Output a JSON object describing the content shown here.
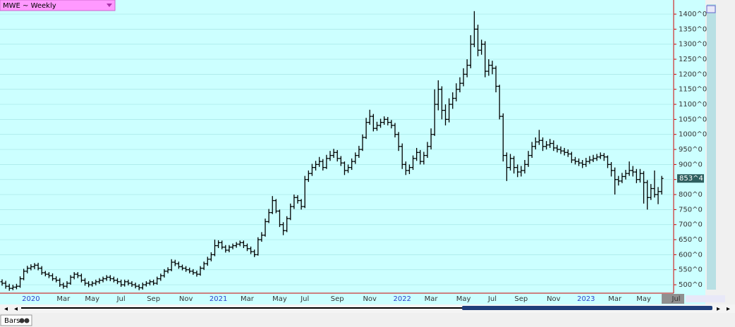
{
  "ui": {
    "symbol": "MWE ~ Weekly",
    "tab": "Bars"
  },
  "chart_data": {
    "type": "ohlc",
    "grid": true,
    "color": "#000000",
    "ylim": [
      472,
      1447
    ],
    "yticks": [
      {
        "value": 500,
        "label": "500^0"
      },
      {
        "value": 550,
        "label": "550^0"
      },
      {
        "value": 600,
        "label": "600^0"
      },
      {
        "value": 650,
        "label": "650^0"
      },
      {
        "value": 700,
        "label": "700^0"
      },
      {
        "value": 750,
        "label": "750^0"
      },
      {
        "value": 800,
        "label": "800^0"
      },
      {
        "value": 850,
        "label": "850^0"
      },
      {
        "value": 900,
        "label": "900^0"
      },
      {
        "value": 950,
        "label": "950^0"
      },
      {
        "value": 1000,
        "label": "1000^0"
      },
      {
        "value": 1050,
        "label": "1050^0"
      },
      {
        "value": 1100,
        "label": "1100^0"
      },
      {
        "value": 1150,
        "label": "1150^0"
      },
      {
        "value": 1200,
        "label": "1200^0"
      },
      {
        "value": 1250,
        "label": "1250^0"
      },
      {
        "value": 1300,
        "label": "1300^0"
      },
      {
        "value": 1350,
        "label": "1350^0"
      },
      {
        "value": 1400,
        "label": "1400^0"
      }
    ],
    "last": {
      "value": 853.5,
      "label": "853^4"
    },
    "categories": [
      null,
      null,
      null,
      null,
      null,
      null,
      null,
      null,
      "2020",
      null,
      null,
      null,
      null,
      null,
      null,
      null,
      null,
      "Mar",
      null,
      null,
      null,
      null,
      null,
      null,
      null,
      "May",
      null,
      null,
      null,
      null,
      null,
      null,
      null,
      "Jul",
      null,
      null,
      null,
      null,
      null,
      null,
      null,
      null,
      "Sep",
      null,
      null,
      null,
      null,
      null,
      null,
      null,
      null,
      "Nov",
      null,
      null,
      null,
      null,
      null,
      null,
      null,
      null,
      "2021",
      null,
      null,
      null,
      null,
      null,
      null,
      null,
      "Mar",
      null,
      null,
      null,
      null,
      null,
      null,
      null,
      null,
      "May",
      null,
      null,
      null,
      null,
      null,
      null,
      "Jul",
      null,
      null,
      null,
      null,
      null,
      null,
      null,
      null,
      "Sep",
      null,
      null,
      null,
      null,
      null,
      null,
      null,
      null,
      "Nov",
      null,
      null,
      null,
      null,
      null,
      null,
      null,
      null,
      "2022",
      null,
      null,
      null,
      null,
      null,
      null,
      null,
      "Mar",
      null,
      null,
      null,
      null,
      null,
      null,
      null,
      null,
      "May",
      null,
      null,
      null,
      null,
      null,
      null,
      null,
      "Jul",
      null,
      null,
      null,
      null,
      null,
      null,
      null,
      "Sep",
      null,
      null,
      null,
      null,
      null,
      null,
      null,
      null,
      "Nov",
      null,
      null,
      null,
      null,
      null,
      null,
      null,
      null,
      "2023",
      null,
      null,
      null,
      null,
      null,
      null,
      null,
      "Mar",
      null,
      null,
      null,
      null,
      null,
      null,
      null,
      "May",
      null,
      null,
      null,
      null,
      null,
      null,
      null,
      null,
      "Jul"
    ],
    "open": [
      510,
      505,
      495,
      488,
      492,
      495,
      520,
      545,
      555,
      560,
      565,
      555,
      540,
      535,
      530,
      520,
      515,
      500,
      495,
      505,
      525,
      535,
      530,
      515,
      505,
      500,
      505,
      510,
      515,
      520,
      525,
      520,
      515,
      510,
      500,
      510,
      505,
      500,
      495,
      490,
      500,
      505,
      510,
      505,
      520,
      530,
      545,
      550,
      575,
      570,
      560,
      555,
      550,
      545,
      540,
      535,
      555,
      570,
      585,
      600,
      630,
      640,
      625,
      615,
      625,
      630,
      635,
      640,
      630,
      620,
      610,
      600,
      650,
      665,
      710,
      740,
      780,
      745,
      700,
      680,
      720,
      760,
      790,
      780,
      760,
      850,
      870,
      890,
      900,
      910,
      890,
      920,
      930,
      940,
      920,
      905,
      880,
      890,
      910,
      930,
      950,
      990,
      1040,
      1060,
      1020,
      1030,
      1040,
      1050,
      1040,
      1030,
      1000,
      960,
      900,
      880,
      890,
      920,
      940,
      910,
      930,
      960,
      1000,
      1100,
      1150,
      1080,
      1050,
      1100,
      1120,
      1150,
      1170,
      1200,
      1230,
      1300,
      1350,
      1280,
      1300,
      1210,
      1230,
      1220,
      1160,
      1060,
      930,
      890,
      920,
      890,
      875,
      880,
      900,
      930,
      960,
      975,
      980,
      960,
      965,
      970,
      955,
      950,
      945,
      940,
      935,
      915,
      910,
      905,
      900,
      910,
      915,
      920,
      925,
      930,
      925,
      900,
      880,
      850,
      845,
      860,
      870,
      880,
      875,
      850,
      870,
      840,
      790,
      820,
      800,
      810,
      null,
      null,
      null,
      null
    ],
    "high": [
      518,
      513,
      503,
      500,
      503,
      528,
      553,
      563,
      568,
      572,
      573,
      562,
      546,
      542,
      538,
      528,
      522,
      507,
      512,
      532,
      542,
      542,
      537,
      522,
      512,
      512,
      517,
      522,
      527,
      532,
      532,
      527,
      522,
      517,
      517,
      517,
      512,
      507,
      502,
      507,
      512,
      517,
      517,
      527,
      537,
      552,
      558,
      585,
      583,
      577,
      567,
      562,
      557,
      552,
      547,
      562,
      577,
      593,
      608,
      650,
      648,
      647,
      632,
      632,
      637,
      642,
      647,
      647,
      637,
      627,
      617,
      658,
      675,
      720,
      752,
      795,
      785,
      750,
      708,
      728,
      770,
      800,
      798,
      785,
      862,
      880,
      902,
      912,
      925,
      918,
      932,
      945,
      952,
      948,
      928,
      910,
      900,
      920,
      940,
      962,
      1000,
      1055,
      1082,
      1068,
      1042,
      1052,
      1060,
      1058,
      1048,
      1038,
      1008,
      970,
      910,
      900,
      930,
      955,
      948,
      942,
      975,
      1020,
      1150,
      1180,
      1160,
      1100,
      1120,
      1140,
      1170,
      1190,
      1220,
      1250,
      1330,
      1410,
      1365,
      1315,
      1310,
      1250,
      1245,
      1228,
      1165,
      1070,
      940,
      935,
      928,
      900,
      895,
      915,
      945,
      975,
      990,
      1015,
      990,
      978,
      985,
      980,
      965,
      960,
      955,
      950,
      942,
      925,
      920,
      915,
      922,
      928,
      932,
      935,
      940,
      938,
      930,
      908,
      890,
      862,
      872,
      882,
      910,
      895,
      885,
      885,
      878,
      848,
      835,
      880,
      825,
      862,
      null,
      null,
      null,
      null
    ],
    "low": [
      497,
      487,
      480,
      482,
      485,
      490,
      515,
      538,
      548,
      552,
      548,
      533,
      528,
      522,
      513,
      508,
      493,
      487,
      489,
      500,
      518,
      522,
      508,
      497,
      492,
      494,
      498,
      503,
      508,
      513,
      512,
      508,
      502,
      493,
      494,
      498,
      493,
      488,
      482,
      484,
      494,
      498,
      498,
      500,
      513,
      524,
      538,
      545,
      562,
      553,
      548,
      543,
      538,
      533,
      527,
      530,
      549,
      563,
      578,
      595,
      622,
      618,
      607,
      608,
      618,
      623,
      628,
      622,
      612,
      602,
      592,
      597,
      643,
      660,
      705,
      735,
      738,
      692,
      665,
      675,
      715,
      752,
      770,
      750,
      755,
      842,
      862,
      880,
      892,
      880,
      885,
      912,
      922,
      910,
      895,
      865,
      872,
      882,
      902,
      922,
      945,
      985,
      1032,
      1010,
      1012,
      1022,
      1032,
      1030,
      1020,
      990,
      945,
      885,
      865,
      868,
      882,
      912,
      900,
      900,
      922,
      950,
      995,
      1080,
      1050,
      1030,
      1040,
      1085,
      1110,
      1140,
      1160,
      1190,
      1220,
      1290,
      1260,
      1265,
      1190,
      1195,
      1200,
      1140,
      1050,
      910,
      845,
      880,
      870,
      858,
      860,
      870,
      892,
      922,
      950,
      965,
      945,
      950,
      955,
      945,
      940,
      935,
      930,
      925,
      905,
      900,
      895,
      888,
      892,
      902,
      908,
      912,
      918,
      912,
      888,
      860,
      800,
      830,
      838,
      850,
      862,
      860,
      838,
      840,
      770,
      750,
      782,
      790,
      768,
      800,
      null,
      null,
      null,
      null
    ],
    "close": [
      505,
      495,
      488,
      492,
      495,
      520,
      545,
      555,
      560,
      565,
      555,
      540,
      535,
      530,
      520,
      515,
      500,
      495,
      505,
      525,
      535,
      530,
      515,
      505,
      500,
      505,
      510,
      515,
      520,
      525,
      520,
      515,
      510,
      500,
      510,
      505,
      500,
      495,
      490,
      500,
      505,
      510,
      505,
      520,
      530,
      545,
      550,
      575,
      570,
      560,
      555,
      550,
      545,
      540,
      535,
      555,
      570,
      585,
      600,
      630,
      640,
      625,
      615,
      625,
      630,
      635,
      640,
      630,
      620,
      610,
      600,
      650,
      665,
      710,
      740,
      780,
      745,
      700,
      680,
      720,
      760,
      790,
      780,
      760,
      850,
      870,
      890,
      900,
      910,
      890,
      920,
      930,
      940,
      920,
      905,
      880,
      890,
      910,
      930,
      950,
      990,
      1040,
      1060,
      1020,
      1030,
      1040,
      1050,
      1040,
      1030,
      1000,
      960,
      900,
      880,
      890,
      920,
      940,
      910,
      930,
      960,
      1000,
      1100,
      1150,
      1080,
      1050,
      1100,
      1120,
      1150,
      1170,
      1200,
      1230,
      1300,
      1350,
      1280,
      1300,
      1210,
      1230,
      1220,
      1160,
      1060,
      930,
      890,
      920,
      890,
      875,
      880,
      900,
      930,
      960,
      975,
      980,
      960,
      965,
      970,
      955,
      950,
      945,
      940,
      935,
      915,
      910,
      905,
      900,
      910,
      915,
      920,
      925,
      930,
      925,
      900,
      880,
      850,
      845,
      860,
      870,
      880,
      875,
      850,
      870,
      840,
      790,
      820,
      800,
      810,
      853.5,
      null,
      null,
      null,
      null
    ]
  }
}
